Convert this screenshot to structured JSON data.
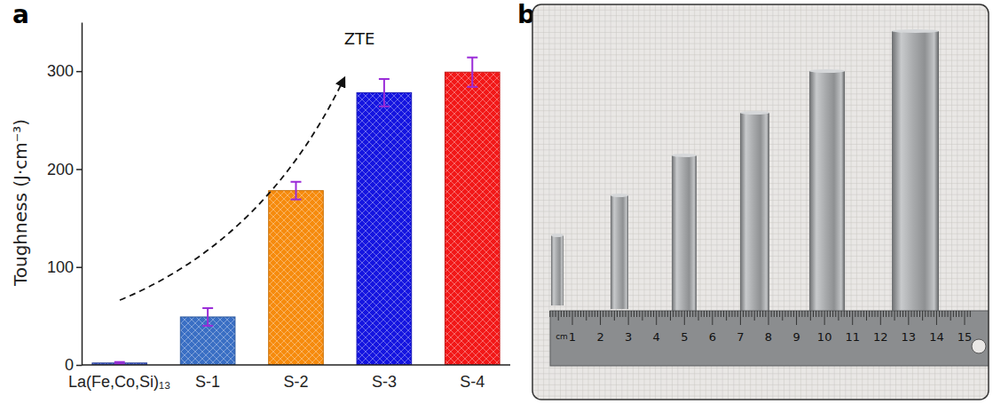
{
  "chart_data": {
    "type": "bar",
    "panel_label": "a",
    "categories": [
      "La(Fe,Co,Si)₁₃",
      "S-1",
      "S-2",
      "S-3",
      "S-4"
    ],
    "values": [
      2,
      49,
      178,
      278,
      299
    ],
    "errors": [
      1,
      9,
      9,
      14,
      15
    ],
    "colors": [
      "#3b55c0",
      "#3a6fc4",
      "#f68b0d",
      "#1515e0",
      "#f21818"
    ],
    "ylabel": "Toughness (J·cm⁻³)",
    "annotation": "ZTE",
    "ylim": [
      0,
      350
    ],
    "yticks": [
      0,
      100,
      200,
      300
    ]
  },
  "photo": {
    "panel_label": "b",
    "ruler_unit": "cm",
    "ruler_ticks": [
      1,
      2,
      3,
      4,
      5,
      6,
      7,
      8,
      9,
      10,
      11,
      12,
      13,
      14,
      15
    ]
  }
}
